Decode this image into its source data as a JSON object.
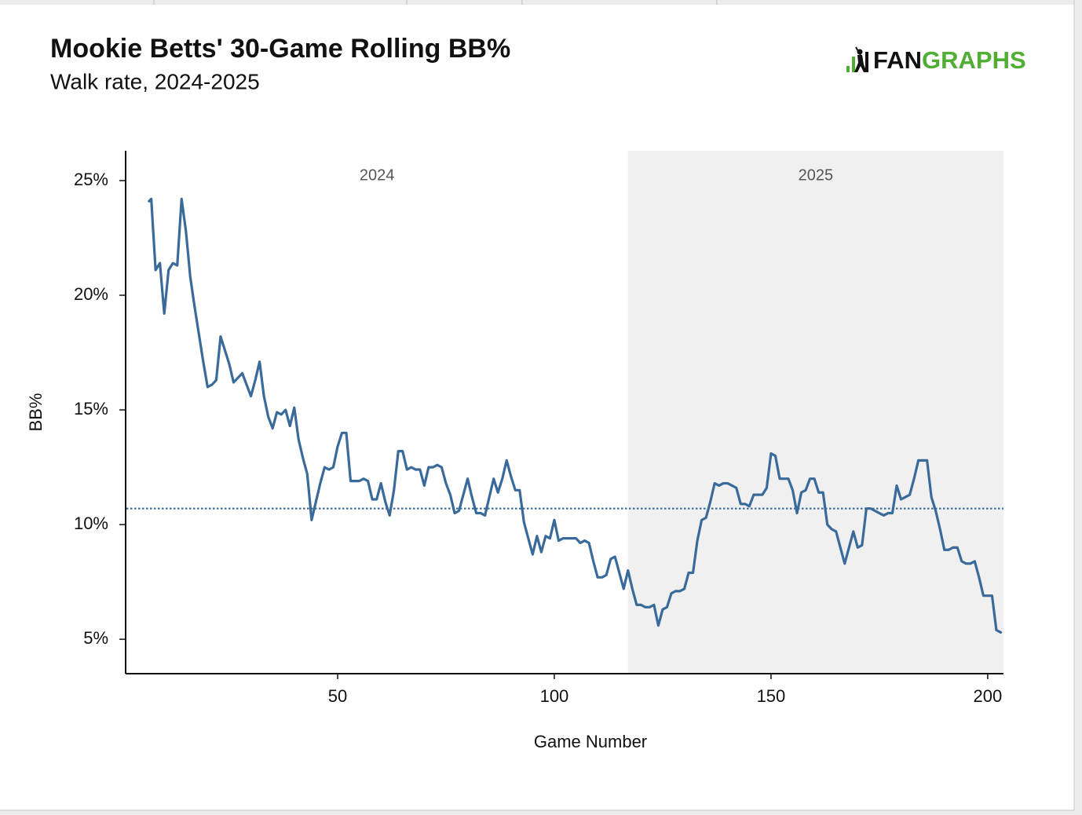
{
  "chart_data": {
    "type": "line",
    "title": "Mookie Betts' 30-Game Rolling BB%",
    "subtitle": "Walk rate, 2024-2025",
    "logo": [
      "FAN",
      "GRAPHS"
    ],
    "x_label": "Game Number",
    "y_label": "BB%",
    "xlim": [
      1,
      204
    ],
    "ylim": [
      3.5,
      26.3
    ],
    "xticks": [
      50,
      100,
      150,
      200
    ],
    "yticks": [
      {
        "value": 5,
        "label": "5%"
      },
      {
        "value": 10,
        "label": "10%"
      },
      {
        "value": 15,
        "label": "15%"
      },
      {
        "value": 20,
        "label": "20%"
      },
      {
        "value": 25,
        "label": "25%"
      }
    ],
    "periods": [
      {
        "label": "2024",
        "start": 1,
        "end": 117,
        "shaded": false
      },
      {
        "label": "2025",
        "start": 117,
        "end": 204,
        "shaded": true
      }
    ],
    "shade_color": "#f0f0f0",
    "reference_line": 10.7,
    "x": [
      6.5,
      7,
      8,
      9,
      10,
      11,
      12,
      13,
      14,
      15,
      16,
      17,
      18,
      19,
      20,
      21,
      22,
      23,
      24,
      25,
      26,
      27,
      28,
      29,
      30,
      31,
      32,
      33,
      34,
      35,
      36,
      37,
      38,
      39,
      40,
      41,
      42,
      43,
      44,
      45,
      46,
      47,
      48,
      49,
      50,
      51,
      52,
      53,
      54,
      55,
      56,
      57,
      58,
      59,
      60,
      61,
      62,
      63,
      64,
      65,
      66,
      67,
      68,
      69,
      70,
      71,
      72,
      73,
      74,
      75,
      76,
      77,
      78,
      79,
      80,
      81,
      82,
      83,
      84,
      85,
      86,
      87,
      88,
      89,
      90,
      91,
      92,
      93,
      94,
      95,
      96,
      97,
      98,
      99,
      100,
      101,
      102,
      103,
      104,
      105,
      106,
      107,
      108,
      109,
      110,
      111,
      112,
      113,
      114,
      115,
      116,
      117,
      118,
      119,
      120,
      121,
      122,
      123,
      124,
      125,
      126,
      127,
      128,
      129,
      130,
      131,
      132,
      133,
      134,
      135,
      136,
      137,
      138,
      139,
      140,
      141,
      142,
      143,
      144,
      145,
      146,
      147,
      148,
      149,
      150,
      151,
      152,
      153,
      154,
      155,
      156,
      157,
      158,
      159,
      160,
      161,
      162,
      163,
      164,
      165,
      166,
      167,
      168,
      169,
      170,
      171,
      172,
      173,
      174,
      175,
      176,
      177,
      178,
      179,
      180,
      181,
      182,
      183,
      184,
      185,
      186,
      187,
      188,
      189,
      190,
      191,
      192,
      193,
      194,
      195,
      196,
      197,
      198,
      199,
      200,
      201,
      202,
      203
    ],
    "series": [
      {
        "name": "BB%",
        "color": "#3a6a9a",
        "values": [
          24.1,
          24.2,
          21.1,
          21.4,
          19.2,
          21.1,
          21.4,
          21.3,
          24.2,
          22.8,
          20.8,
          19.5,
          18.3,
          17.1,
          16.0,
          16.1,
          16.3,
          18.2,
          17.6,
          17.0,
          16.2,
          16.4,
          16.6,
          16.1,
          15.6,
          16.3,
          17.1,
          15.6,
          14.7,
          14.2,
          14.9,
          14.8,
          15.0,
          14.3,
          15.1,
          13.7,
          12.9,
          12.2,
          10.2,
          11.0,
          11.8,
          12.5,
          12.4,
          12.5,
          13.4,
          14.0,
          14.0,
          11.9,
          11.9,
          11.9,
          12.0,
          11.9,
          11.1,
          11.1,
          11.8,
          11.0,
          10.4,
          11.5,
          13.2,
          13.2,
          12.4,
          12.5,
          12.4,
          12.4,
          11.7,
          12.5,
          12.5,
          12.6,
          12.5,
          11.8,
          11.3,
          10.5,
          10.6,
          11.3,
          12.0,
          11.2,
          10.5,
          10.5,
          10.4,
          11.2,
          12.0,
          11.4,
          12.0,
          12.8,
          12.1,
          11.5,
          11.5,
          10.1,
          9.4,
          8.7,
          9.5,
          8.8,
          9.5,
          9.4,
          10.2,
          9.3,
          9.4,
          9.4,
          9.4,
          9.4,
          9.2,
          9.3,
          9.2,
          8.4,
          7.7,
          7.7,
          7.8,
          8.5,
          8.6,
          7.9,
          7.2,
          8.0,
          7.2,
          6.5,
          6.5,
          6.4,
          6.4,
          6.5,
          5.6,
          6.3,
          6.4,
          7.0,
          7.1,
          7.1,
          7.2,
          7.9,
          7.9,
          9.3,
          10.2,
          10.3,
          11.0,
          11.8,
          11.7,
          11.8,
          11.8,
          11.7,
          11.6,
          10.9,
          10.9,
          10.8,
          11.3,
          11.3,
          11.3,
          11.6,
          13.1,
          13.0,
          12.0,
          12.0,
          12.0,
          11.5,
          10.5,
          11.4,
          11.5,
          12.0,
          12.0,
          11.4,
          11.4,
          10.0,
          9.8,
          9.7,
          9.0,
          8.3,
          9.0,
          9.7,
          9.0,
          9.1,
          10.7,
          10.7,
          10.6,
          10.5,
          10.4,
          10.5,
          10.5,
          11.7,
          11.1,
          11.2,
          11.3,
          12.0,
          12.8,
          12.8,
          12.8,
          11.2,
          10.6,
          9.8,
          8.9,
          8.9,
          9.0,
          9.0,
          8.4,
          8.3,
          8.3,
          8.4,
          7.7,
          6.9,
          6.9,
          6.9,
          5.4,
          5.3
        ]
      }
    ]
  }
}
